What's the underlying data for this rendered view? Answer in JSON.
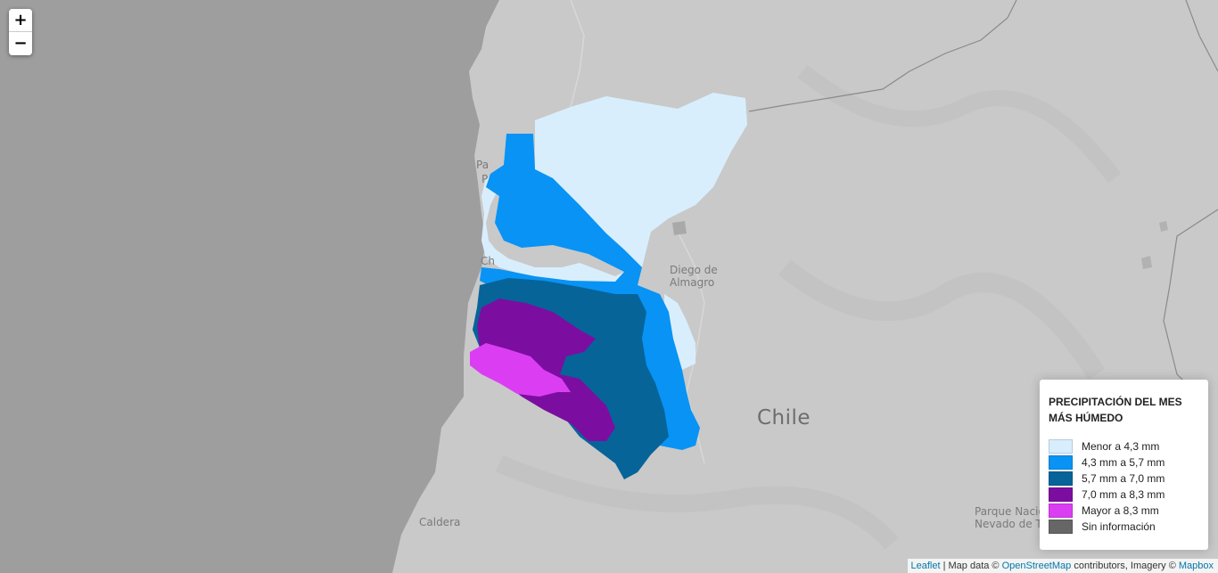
{
  "map": {
    "labels": {
      "city_diego": "Diego de",
      "city_almagro": "Almagro",
      "country": "Chile",
      "city_caldera": "Caldera",
      "park_line1": "Parque Nacion",
      "park_line2": "Nevado de Tres C",
      "partial_pa": "Pa",
      "partial_p": "P",
      "partial_ch": "Ch"
    },
    "colors": {
      "sea": "#9e9e9e",
      "land": "#c9c9c9",
      "border": "#8a8a8a"
    }
  },
  "zoom": {
    "in_label": "+",
    "out_label": "−"
  },
  "legend": {
    "title": "PRECIPITACIÓN DEL MES MÁS HÚMEDO",
    "items": [
      {
        "label": "Menor a 4,3 mm",
        "color": "#d9eefd"
      },
      {
        "label": "4,3 mm a 5,7 mm",
        "color": "#0893f5"
      },
      {
        "label": "5,7 mm a 7,0 mm",
        "color": "#066499"
      },
      {
        "label": "7,0 mm a 8,3 mm",
        "color": "#7b0ea0"
      },
      {
        "label": "Mayor a 8,3 mm",
        "color": "#db3ef2"
      },
      {
        "label": "Sin información",
        "color": "#666666"
      }
    ]
  },
  "attribution": {
    "leaflet": "Leaflet",
    "sep": " | Map data © ",
    "osm": "OpenStreetMap",
    "mid": " contributors, Imagery © ",
    "mapbox": "Mapbox"
  }
}
